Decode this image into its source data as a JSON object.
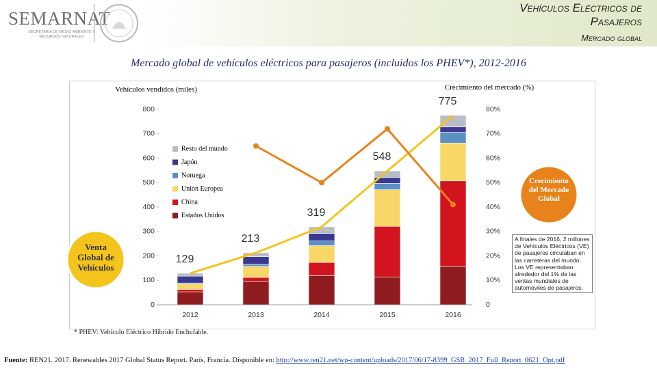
{
  "header": {
    "logo": "SEMARNAT",
    "logo_subtitle": "SECRETARÍA DE MEDIO AMBIENTE Y RECURSOS NATURALES",
    "title_lines": [
      "Vehículos Eléctricos de",
      "Pasajeros"
    ],
    "subtitle": "Mercado global"
  },
  "chart_data": {
    "type": "stacked-bar",
    "title": "Mercado global de vehículos eléctricos para pasajeros (incluidos los PHEV*), 2012-2016",
    "y_label": "Vehículos vendidos (miles)",
    "y2_label": "Crecimiento del mercado (%)",
    "categories": [
      "2012",
      "2013",
      "2014",
      "2015",
      "2016"
    ],
    "series": [
      {
        "name": "Estados Unidos",
        "color": "#8e1c1f",
        "values": [
          53,
          97,
          119,
          114,
          157
        ]
      },
      {
        "name": "China",
        "color": "#d2141f",
        "values": [
          10,
          15,
          54,
          207,
          350
        ]
      },
      {
        "name": "Unión Europea",
        "color": "#f8d767",
        "values": [
          22,
          45,
          69,
          150,
          155
        ]
      },
      {
        "name": "Noruega",
        "color": "#5d8fc4",
        "values": [
          4,
          10,
          19,
          26,
          45
        ]
      },
      {
        "name": "Japón",
        "color": "#3b3890",
        "values": [
          28,
          30,
          31,
          24,
          21
        ]
      },
      {
        "name": "Resto del mundo",
        "color": "#b9bdc4",
        "values": [
          12,
          16,
          27,
          27,
          47
        ]
      }
    ],
    "lines": [
      {
        "name": "Venta Global de Vehículos",
        "color": "#f3c41c",
        "values": [
          129,
          213,
          319,
          548,
          775
        ]
      },
      {
        "name": "Crecimiento del Mercado Global",
        "color": "#e8831c",
        "axis": "y2",
        "values": [
          null,
          65,
          50,
          72,
          41
        ]
      }
    ],
    "ylim": [
      0,
      800
    ],
    "yticks": [
      0,
      100,
      200,
      300,
      400,
      500,
      600,
      700,
      800
    ],
    "y2lim": [
      0,
      80
    ],
    "y2ticks": [
      0,
      {
        "value": 10,
        "label": "10%"
      },
      {
        "value": 20,
        "label": "20%"
      },
      {
        "value": 30,
        "label": "30%"
      },
      {
        "value": 40,
        "label": "40%"
      },
      {
        "value": 50,
        "label": "50%"
      },
      {
        "value": 60,
        "label": "60%"
      },
      {
        "value": 70,
        "label": "70%"
      },
      {
        "value": 80,
        "label": "80%"
      }
    ],
    "annotation": "A finales de 2016, 2 millones de Vehículos Eléctricos (VE) de pasajeros circulaban en las carreteras del mundo. Los VE representaban alrededor del 1% de las ventas mundiales de automóviles de pasajeros.",
    "legend_position": "upper left"
  },
  "footnote": "* PHEV: Vehículo Eléctrico Híbrido Enchufable.",
  "source": {
    "label": "Fuente:",
    "text": "REN21. 2017. Renewables 2017 Global Status Report. París, Francia. Disponible en:",
    "url": "http://www.ren21.net/wp-content/uploads/2017/06/17-8399_GSR_2017_Full_Report_0621_Opt.pdf"
  }
}
